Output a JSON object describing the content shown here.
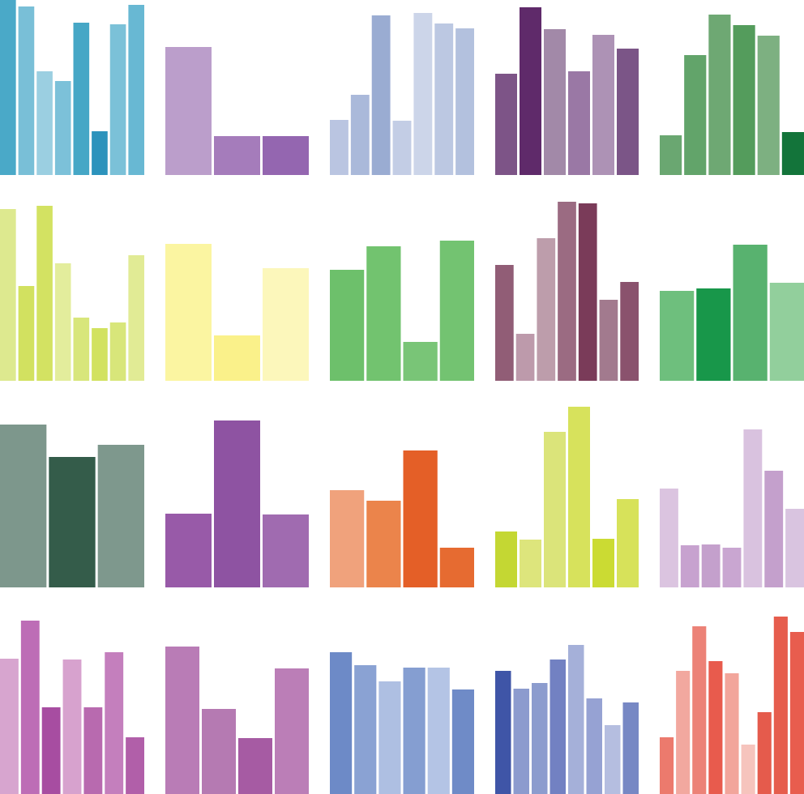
{
  "chart_data": [
    {
      "type": "bar",
      "values": [
        216,
        208,
        128,
        116,
        188,
        54,
        186,
        210
      ],
      "colors": [
        "#4aa9c8",
        "#79bfd7",
        "#9bcfe1",
        "#7cc1d9",
        "#46a7c6",
        "#2c93bc",
        "#7bc1d8",
        "#68b8d3"
      ]
    },
    {
      "type": "bar",
      "values": [
        158,
        48,
        48
      ],
      "colors": [
        "#bb9ecb",
        "#a57cbb",
        "#9466b0"
      ]
    },
    {
      "type": "bar",
      "values": [
        68,
        99,
        197,
        67,
        200,
        187,
        181
      ],
      "colors": [
        "#bac5e1",
        "#aab9da",
        "#9aacd2",
        "#c3cde5",
        "#ccd5e9",
        "#bcc8e2",
        "#b3c1de"
      ]
    },
    {
      "type": "bar",
      "values": [
        125,
        207,
        180,
        128,
        173,
        156
      ],
      "colors": [
        "#7d5487",
        "#5f2a6a",
        "#a289a8",
        "#9a78a5",
        "#ad92b5",
        "#7b5587"
      ]
    },
    {
      "type": "bar",
      "values": [
        49,
        148,
        198,
        185,
        172,
        53
      ],
      "colors": [
        "#6aa771",
        "#62a46a",
        "#6ea873",
        "#549c5c",
        "#7db081",
        "#13743a"
      ]
    },
    {
      "type": "bar",
      "values": [
        212,
        117,
        216,
        145,
        78,
        65,
        72,
        155
      ],
      "colors": [
        "#dde98f",
        "#d2e160",
        "#d3e262",
        "#e3ed9c",
        "#d8e67b",
        "#d2e260",
        "#d8e67a",
        "#e1eb95"
      ]
    },
    {
      "type": "bar",
      "values": [
        169,
        56,
        139
      ],
      "colors": [
        "#fbf5a1",
        "#faf18a",
        "#fcf7bb"
      ]
    },
    {
      "type": "bar",
      "values": [
        137,
        166,
        48,
        173
      ],
      "colors": [
        "#6dc06b",
        "#72c36f",
        "#79c577",
        "#73c371"
      ]
    },
    {
      "type": "bar",
      "values": [
        143,
        58,
        176,
        221,
        219,
        100,
        122
      ],
      "colors": [
        "#915d76",
        "#bd9aab",
        "#bd9dab",
        "#9b6b82",
        "#7a3b59",
        "#a27a8e",
        "#8a526d"
      ]
    },
    {
      "type": "bar",
      "values": [
        111,
        114,
        168,
        121
      ],
      "colors": [
        "#6ebf7d",
        "#18974a",
        "#58b26f",
        "#92cf9c"
      ]
    },
    {
      "type": "bar",
      "values": [
        201,
        161,
        176
      ],
      "colors": [
        "#7d978c",
        "#345c4a",
        "#7e988d"
      ]
    },
    {
      "type": "bar",
      "values": [
        91,
        206,
        90
      ],
      "colors": [
        "#985aa8",
        "#8e53a2",
        "#a06bb0"
      ]
    },
    {
      "type": "bar",
      "values": [
        120,
        107,
        169,
        49
      ],
      "colors": [
        "#f0a27c",
        "#eb844b",
        "#e45f27",
        "#e66b31"
      ]
    },
    {
      "type": "bar",
      "values": [
        69,
        59,
        192,
        223,
        60,
        109
      ],
      "colors": [
        "#c4d733",
        "#dde57c",
        "#dbe47a",
        "#d7e25c",
        "#cbdb33",
        "#d7e25a"
      ]
    },
    {
      "type": "bar",
      "values": [
        122,
        52,
        53,
        49,
        195,
        144,
        97
      ],
      "colors": [
        "#dbc4e0",
        "#c7a2cf",
        "#c4a0cc",
        "#c9a6d1",
        "#d9c2df",
        "#c4a0cc",
        "#d9c4e0"
      ]
    },
    {
      "type": "bar",
      "values": [
        167,
        214,
        107,
        166,
        107,
        175,
        70
      ],
      "colors": [
        "#d7a5cf",
        "#bd6db6",
        "#a74da1",
        "#d7a2ce",
        "#b86aaf",
        "#c47fbd",
        "#b15fa9"
      ]
    },
    {
      "type": "bar",
      "values": [
        182,
        105,
        69,
        155
      ],
      "colors": [
        "#b97cb6",
        "#b57ab2",
        "#a65ba3",
        "#bb7eb7"
      ]
    },
    {
      "type": "bar",
      "values": [
        175,
        159,
        139,
        156,
        156,
        129
      ],
      "colors": [
        "#6d8ac7",
        "#8aa2d3",
        "#aebfe2",
        "#859ed1",
        "#b4c4e5",
        "#6f8bc7"
      ]
    },
    {
      "type": "bar",
      "values": [
        152,
        130,
        137,
        166,
        184,
        118,
        85,
        113
      ],
      "colors": [
        "#3f55a7",
        "#8c9bce",
        "#8c9cce",
        "#7281c2",
        "#a5b0d9",
        "#96a2d3",
        "#b5bee0",
        "#7788c4"
      ]
    },
    {
      "type": "bar",
      "values": [
        70,
        152,
        207,
        164,
        149,
        61,
        101,
        219,
        200
      ],
      "colors": [
        "#ec7a6d",
        "#f2a89f",
        "#ec8277",
        "#e85b4d",
        "#f2a59b",
        "#f6c4bd",
        "#e55b4c",
        "#e65d4d",
        "#e85d4e"
      ]
    }
  ]
}
